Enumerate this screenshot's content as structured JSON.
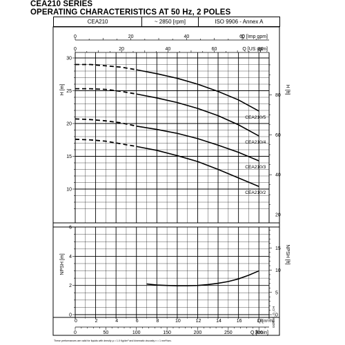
{
  "header": {
    "title_line1": "CEA210 SERIES",
    "title_line2": "OPERATING CHARACTERISTICS AT 50 Hz, 2 POLES",
    "model": "CEA210",
    "speed": "~ 2850 [rpm]",
    "standard": "ISO 9906 - Annex A"
  },
  "footnote": "These performances are valid for liquids with density ρ = 1.0 Kg/dm³ and kinematic viscosity ν = 1 mm²/sec.",
  "code": "04282A_D_CH",
  "chart_data": [
    {
      "type": "line",
      "panel": "head",
      "y_axis_label": "H [m]",
      "y_ticks": [
        "10",
        "15",
        "20",
        "25",
        "30"
      ],
      "y2_axis_label": "H [ft]",
      "y2_ticks": [
        "20",
        "40",
        "60",
        "80"
      ],
      "top_axis_label_1": "Q [Imp gpm]",
      "top_axis_ticks_1": [
        "0",
        "20",
        "40",
        "60"
      ],
      "top_axis_label_2": "Q [US gpm]",
      "top_axis_ticks_2": [
        "0",
        "20",
        "40",
        "60",
        "80"
      ],
      "x_unit": "m³/h",
      "xlim": [
        0,
        19
      ],
      "ylim": [
        6,
        30
      ],
      "grid": true,
      "series": [
        {
          "name": "CEA210/5",
          "x_dashed": [
            0,
            1.5,
            3,
            4.5,
            6
          ],
          "y_dashed": [
            29.0,
            29.0,
            28.8,
            28.6,
            28.2
          ],
          "x": [
            6,
            8,
            10,
            12,
            14,
            16,
            18
          ],
          "y": [
            28.2,
            27.6,
            26.9,
            26.0,
            24.9,
            23.6,
            21.9
          ]
        },
        {
          "name": "CEA210/4",
          "x_dashed": [
            0,
            1.5,
            3,
            4.5,
            6
          ],
          "y_dashed": [
            25.3,
            25.3,
            25.2,
            24.9,
            24.5
          ],
          "x": [
            6,
            8,
            10,
            12,
            14,
            16,
            18
          ],
          "y": [
            24.5,
            23.9,
            23.2,
            22.3,
            21.2,
            19.8,
            18.1
          ]
        },
        {
          "name": "CEA210/3",
          "x_dashed": [
            0,
            1.5,
            3,
            4.5,
            6
          ],
          "y_dashed": [
            20.7,
            20.6,
            20.4,
            20.1,
            19.6
          ],
          "x": [
            6,
            8,
            10,
            12,
            14,
            16,
            18
          ],
          "y": [
            19.6,
            19.1,
            18.5,
            17.7,
            16.7,
            15.6,
            14.3
          ]
        },
        {
          "name": "CEA210/2",
          "x_dashed": [
            0,
            1.5,
            3,
            4.5,
            6
          ],
          "y_dashed": [
            17.6,
            17.5,
            17.3,
            16.9,
            16.5
          ],
          "x": [
            6,
            8,
            10,
            12,
            14,
            16,
            18
          ],
          "y": [
            16.5,
            15.9,
            15.1,
            14.2,
            13.0,
            11.7,
            10.4
          ]
        }
      ]
    },
    {
      "type": "line",
      "panel": "npsh",
      "y_axis_label": "NPSH [m]",
      "y_ticks": [
        "0",
        "2",
        "4",
        "6"
      ],
      "y2_axis_label": "NPSH [ft]",
      "y2_ticks": [
        "0",
        "5",
        "10",
        "15"
      ],
      "x_label": "Q [m³/h]",
      "x_ticks": [
        "0",
        "2",
        "4",
        "6",
        "8",
        "10",
        "12",
        "14",
        "16",
        "18"
      ],
      "x2_label": "Q [l/min]",
      "x2_ticks": [
        "0",
        "50",
        "100",
        "150",
        "200",
        "250",
        "300"
      ],
      "xlim": [
        0,
        19
      ],
      "ylim": [
        0,
        6
      ],
      "grid": true,
      "series": [
        {
          "x": [
            7,
            8,
            9,
            10,
            11,
            12,
            13,
            14,
            15,
            16,
            17,
            18
          ],
          "y": [
            2.1,
            2.03,
            2.0,
            1.98,
            1.98,
            2.0,
            2.06,
            2.15,
            2.27,
            2.45,
            2.7,
            3.0
          ]
        }
      ]
    }
  ]
}
